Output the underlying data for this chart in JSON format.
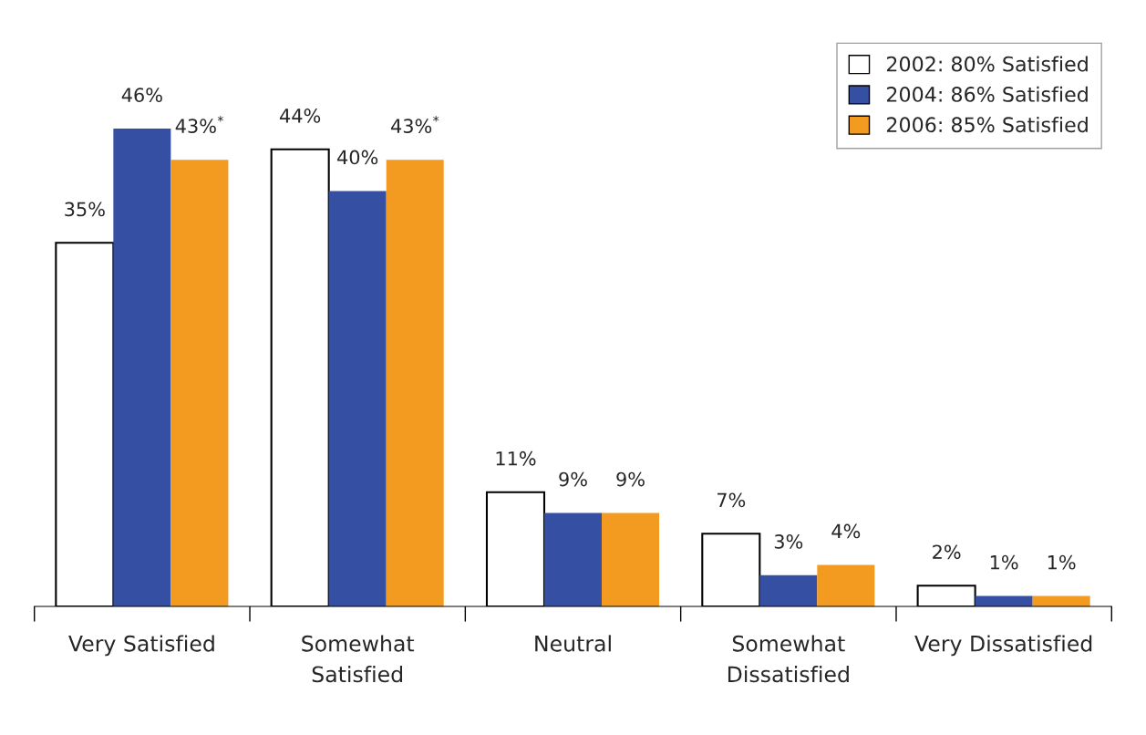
{
  "chart_data": {
    "type": "bar",
    "categories": [
      "Very Satisfied",
      "Somewhat\nSatisfied",
      "Neutral",
      "Somewhat\nDissatisfied",
      "Very Dissatisfied"
    ],
    "series": [
      {
        "name": "2002: 80% Satisfied",
        "color": "#ffffff",
        "values": [
          35,
          44,
          11,
          7,
          2
        ],
        "value_labels": [
          "35%",
          "44%",
          "11%",
          "7%",
          "2%"
        ]
      },
      {
        "name": "2004: 86% Satisfied",
        "color": "#3550a3",
        "values": [
          46,
          40,
          9,
          3,
          1
        ],
        "value_labels": [
          "46%",
          "40%",
          "9%",
          "3%",
          "1%"
        ]
      },
      {
        "name": "2006: 85% Satisfied",
        "color": "#f39a21",
        "values": [
          43,
          43,
          9,
          4,
          1
        ],
        "value_labels": [
          "43%$^{*}$",
          "43%$^{*}$",
          "9%",
          "4%",
          "1%"
        ]
      }
    ],
    "legend": "top right",
    "grid": false
  }
}
